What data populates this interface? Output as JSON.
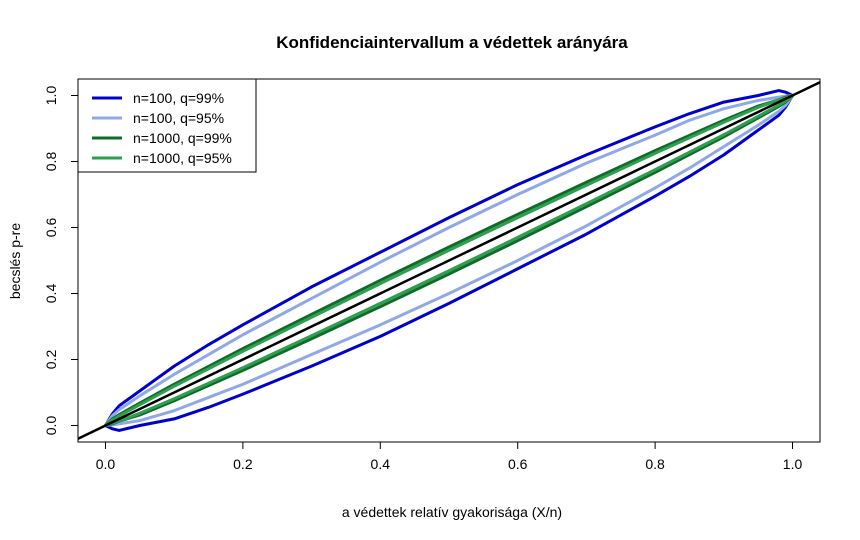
{
  "chart_data": {
    "type": "line",
    "title": "Konfidenciaintervallum a védettek arányára",
    "xlabel": "a védettek relatív gyakorisága (X/n)",
    "ylabel": "becslés p-re",
    "xlim": [
      -0.04,
      1.04
    ],
    "ylim": [
      -0.05,
      1.05
    ],
    "xticks": [
      0.0,
      0.2,
      0.4,
      0.6,
      0.8,
      1.0
    ],
    "yticks": [
      0.0,
      0.2,
      0.4,
      0.6,
      0.8,
      1.0
    ],
    "tick_labels_x": [
      "0.0",
      "0.2",
      "0.4",
      "0.6",
      "0.8",
      "1.0"
    ],
    "tick_labels_y": [
      "0.0",
      "0.2",
      "0.4",
      "0.6",
      "0.8",
      "1.0"
    ],
    "grid": false,
    "legend_position": "top-left",
    "series": [
      {
        "name": "n=100, q=99%",
        "color": "#0000cd",
        "x": [
          0.0,
          0.01,
          0.02,
          0.05,
          0.1,
          0.15,
          0.2,
          0.3,
          0.4,
          0.5,
          0.6,
          0.7,
          0.8,
          0.85,
          0.9,
          0.95,
          0.98,
          0.99,
          1.0
        ],
        "upper": [
          0.0,
          0.035,
          0.06,
          0.105,
          0.18,
          0.245,
          0.305,
          0.42,
          0.525,
          0.63,
          0.73,
          0.82,
          0.905,
          0.945,
          0.98,
          1.0,
          1.015,
          1.01,
          1.0
        ],
        "lower": [
          0.0,
          -0.01,
          -0.015,
          0.0,
          0.02,
          0.055,
          0.095,
          0.18,
          0.27,
          0.37,
          0.475,
          0.58,
          0.695,
          0.755,
          0.82,
          0.895,
          0.94,
          0.965,
          1.0
        ]
      },
      {
        "name": "n=100, q=95%",
        "color": "#8fa8e8",
        "x": [
          0.0,
          0.01,
          0.02,
          0.05,
          0.1,
          0.15,
          0.2,
          0.3,
          0.4,
          0.5,
          0.6,
          0.7,
          0.8,
          0.85,
          0.9,
          0.95,
          0.98,
          0.99,
          1.0
        ],
        "upper": [
          0.0,
          0.03,
          0.048,
          0.09,
          0.155,
          0.215,
          0.275,
          0.385,
          0.495,
          0.6,
          0.7,
          0.795,
          0.88,
          0.925,
          0.96,
          0.985,
          0.995,
          0.998,
          1.0
        ],
        "lower": [
          0.0,
          0.002,
          0.005,
          0.015,
          0.045,
          0.085,
          0.125,
          0.215,
          0.305,
          0.4,
          0.5,
          0.605,
          0.72,
          0.78,
          0.845,
          0.91,
          0.952,
          0.97,
          1.0
        ]
      },
      {
        "name": "n=1000, q=99%",
        "color": "#106b2a",
        "x": [
          0.0,
          0.01,
          0.02,
          0.05,
          0.1,
          0.2,
          0.3,
          0.4,
          0.5,
          0.6,
          0.7,
          0.8,
          0.9,
          0.95,
          0.98,
          0.99,
          1.0
        ],
        "upper": [
          0.0,
          0.02,
          0.033,
          0.068,
          0.125,
          0.233,
          0.337,
          0.44,
          0.541,
          0.64,
          0.737,
          0.833,
          0.925,
          0.968,
          0.987,
          0.995,
          1.0
        ],
        "lower": [
          0.0,
          0.005,
          0.013,
          0.032,
          0.075,
          0.167,
          0.263,
          0.36,
          0.459,
          0.56,
          0.663,
          0.767,
          0.875,
          0.932,
          0.967,
          0.98,
          1.0
        ]
      },
      {
        "name": "n=1000, q=95%",
        "color": "#2e9e4f",
        "x": [
          0.0,
          0.01,
          0.02,
          0.05,
          0.1,
          0.2,
          0.3,
          0.4,
          0.5,
          0.6,
          0.7,
          0.8,
          0.9,
          0.95,
          0.98,
          0.99,
          1.0
        ],
        "upper": [
          0.0,
          0.017,
          0.029,
          0.063,
          0.119,
          0.225,
          0.328,
          0.43,
          0.531,
          0.63,
          0.728,
          0.825,
          0.919,
          0.964,
          0.987,
          0.993,
          1.0
        ],
        "lower": [
          0.0,
          0.007,
          0.013,
          0.037,
          0.081,
          0.175,
          0.272,
          0.37,
          0.469,
          0.57,
          0.672,
          0.775,
          0.881,
          0.937,
          0.971,
          0.983,
          1.0
        ]
      }
    ],
    "reference_line": {
      "x": [
        -0.04,
        1.04
      ],
      "y": [
        -0.04,
        1.04
      ],
      "color": "#000000"
    }
  }
}
